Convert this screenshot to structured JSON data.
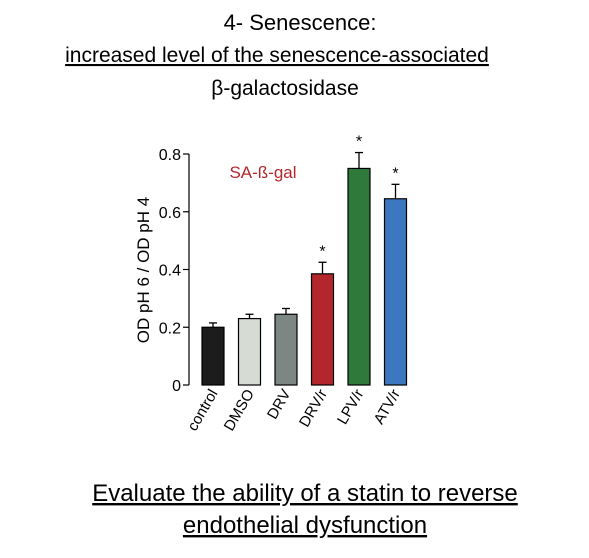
{
  "slide": {
    "title": "4- Senescence:",
    "subtitle": [
      "increased level of the senescence-associated",
      "β-galactosidase"
    ],
    "footer": [
      "Evaluate the ability of a statin to reverse",
      "endothelial dysfunction"
    ]
  },
  "chart_data": {
    "type": "bar",
    "annotation": "SA-ß-gal",
    "y_label": "OD pH 6 / OD pH 4",
    "categories": [
      "control",
      "DMSO",
      "DRV",
      "DRV/r",
      "LPV/r",
      "ATV/r"
    ],
    "values": [
      0.2,
      0.23,
      0.245,
      0.385,
      0.75,
      0.645
    ],
    "errors": [
      0.015,
      0.015,
      0.02,
      0.04,
      0.055,
      0.05
    ],
    "colors": [
      "#1c1c1c",
      "#d6dbd4",
      "#7c8784",
      "#b3262b",
      "#2f7a3a",
      "#3c78c0"
    ],
    "significance": [
      null,
      null,
      null,
      "*",
      "*",
      "*"
    ],
    "ylim": [
      0,
      0.8
    ],
    "yticks": [
      0,
      0.2,
      0.4,
      0.6,
      0.8
    ]
  }
}
